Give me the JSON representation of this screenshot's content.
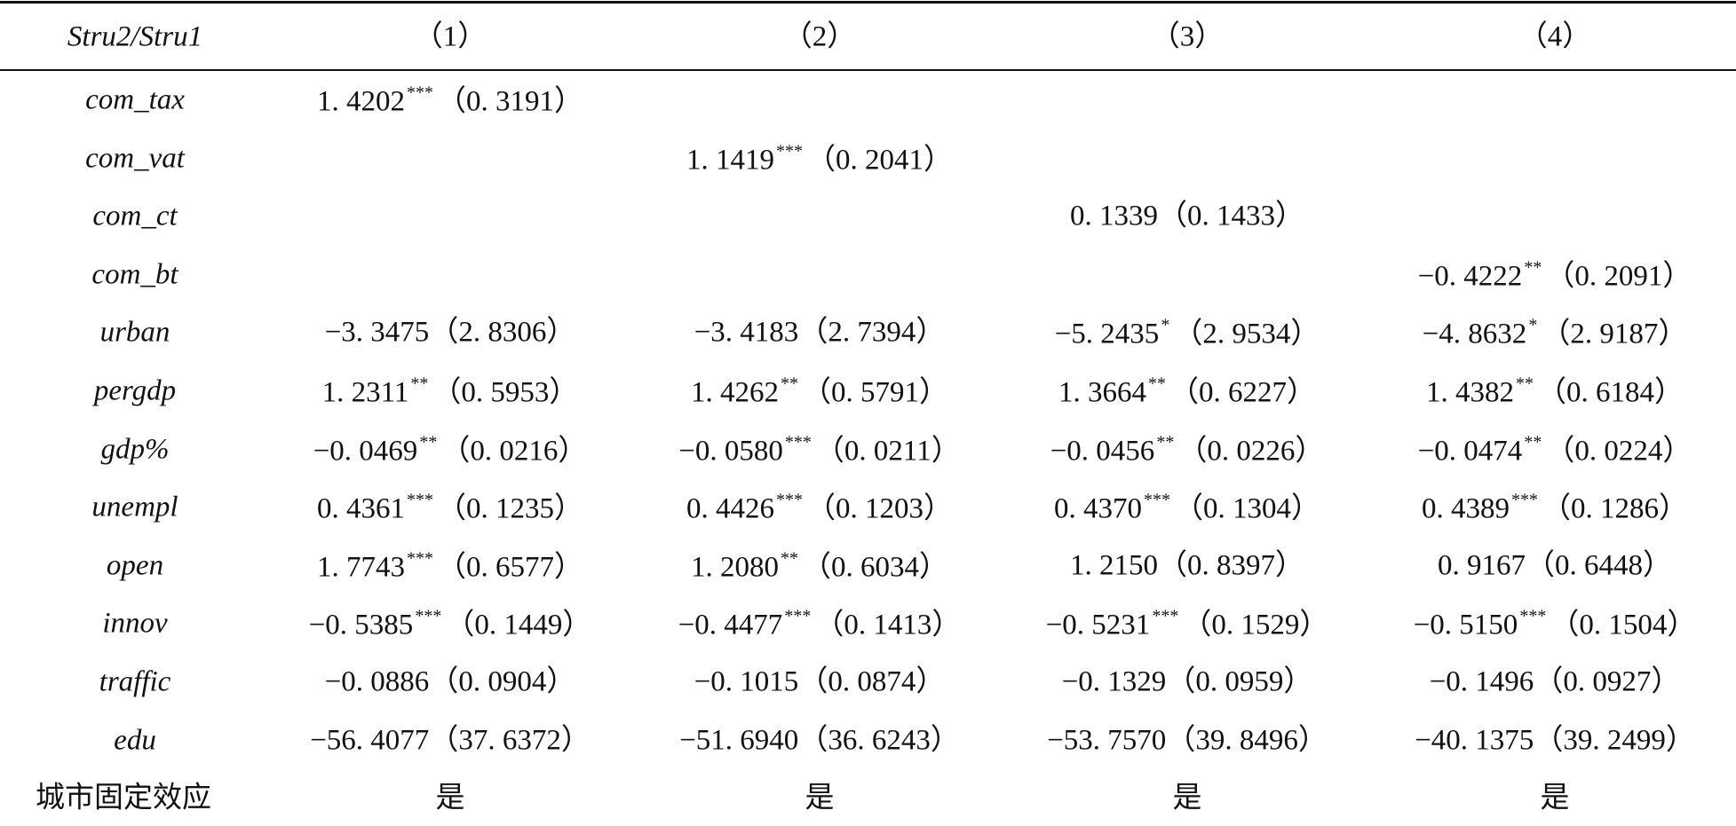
{
  "table": {
    "header": {
      "label": "Stru2/Stru1",
      "columns": [
        "（1）",
        "（2）",
        "（3）",
        "（4）"
      ]
    },
    "rows": [
      {
        "label": "com_tax",
        "cells": [
          {
            "coef": "1. 4202",
            "stars": "***",
            "se": "（0. 3191）"
          },
          null,
          null,
          null
        ]
      },
      {
        "label": "com_vat",
        "cells": [
          null,
          {
            "coef": "1. 1419",
            "stars": "***",
            "se": "（0. 2041）"
          },
          null,
          null
        ]
      },
      {
        "label": "com_ct",
        "cells": [
          null,
          null,
          {
            "coef": "0. 1339",
            "se": "（0. 1433）"
          },
          null
        ]
      },
      {
        "label": "com_bt",
        "cells": [
          null,
          null,
          null,
          {
            "coef": "−0. 4222",
            "stars": "**",
            "se": "（0. 2091）"
          }
        ]
      },
      {
        "label": "urban",
        "cells": [
          {
            "coef": "−3. 3475",
            "se": "（2. 8306）"
          },
          {
            "coef": "−3. 4183",
            "se": "（2. 7394）"
          },
          {
            "coef": "−5. 2435",
            "stars": "*",
            "se": "（2. 9534）"
          },
          {
            "coef": "−4. 8632",
            "stars": "*",
            "se": "（2. 9187）"
          }
        ]
      },
      {
        "label": "pergdp",
        "cells": [
          {
            "coef": "1. 2311",
            "stars": "**",
            "se": "（0. 5953）"
          },
          {
            "coef": "1. 4262",
            "stars": "**",
            "se": "（0. 5791）"
          },
          {
            "coef": "1. 3664",
            "stars": "**",
            "se": "（0. 6227）"
          },
          {
            "coef": "1. 4382",
            "stars": "**",
            "se": "（0. 6184）"
          }
        ]
      },
      {
        "label": "gdp%",
        "cells": [
          {
            "coef": "−0. 0469",
            "stars": "**",
            "se": "（0. 0216）"
          },
          {
            "coef": "−0. 0580",
            "stars": "***",
            "se": "（0. 0211）"
          },
          {
            "coef": "−0. 0456",
            "stars": "**",
            "se": "（0. 0226）"
          },
          {
            "coef": "−0. 0474",
            "stars": "**",
            "se": "（0. 0224）"
          }
        ]
      },
      {
        "label": "unempl",
        "cells": [
          {
            "coef": "0. 4361",
            "stars": "***",
            "se": "（0. 1235）"
          },
          {
            "coef": "0. 4426",
            "stars": "***",
            "se": "（0. 1203）"
          },
          {
            "coef": "0. 4370",
            "stars": "***",
            "se": "（0. 1304）"
          },
          {
            "coef": "0. 4389",
            "stars": "***",
            "se": "（0. 1286）"
          }
        ]
      },
      {
        "label": "open",
        "cells": [
          {
            "coef": "1. 7743",
            "stars": "***",
            "se": "（0. 6577）"
          },
          {
            "coef": "1. 2080",
            "stars": "**",
            "se": "（0. 6034）"
          },
          {
            "coef": "1. 2150",
            "se": "（0. 8397）"
          },
          {
            "coef": "0. 9167",
            "se": "（0. 6448）"
          }
        ]
      },
      {
        "label": "innov",
        "cells": [
          {
            "coef": "−0. 5385",
            "stars": "***",
            "se": "（0. 1449）"
          },
          {
            "coef": "−0. 4477",
            "stars": "***",
            "se": "（0. 1413）"
          },
          {
            "coef": "−0. 5231",
            "stars": "***",
            "se": "（0. 1529）"
          },
          {
            "coef": "−0. 5150",
            "stars": "***",
            "se": "（0. 1504）"
          }
        ]
      },
      {
        "label": "traffic",
        "cells": [
          {
            "coef": "−0. 0886",
            "se": "（0. 0904）"
          },
          {
            "coef": "−0. 1015",
            "se": "（0. 0874）"
          },
          {
            "coef": "−0. 1329",
            "se": "（0. 0959）"
          },
          {
            "coef": "−0. 1496",
            "se": "（0. 0927）"
          }
        ]
      },
      {
        "label": "edu",
        "cells": [
          {
            "coef": "−56. 4077",
            "se": "（37. 6372）"
          },
          {
            "coef": "−51. 6940",
            "se": "（36. 6243）"
          },
          {
            "coef": "−53. 7570",
            "se": "（39. 8496）"
          },
          {
            "coef": "−40. 1375",
            "se": "（39. 2499）"
          }
        ]
      },
      {
        "label": "城市固定效应",
        "cells": [
          {
            "coef": "是"
          },
          {
            "coef": "是"
          },
          {
            "coef": "是"
          },
          {
            "coef": "是"
          }
        ]
      }
    ]
  }
}
